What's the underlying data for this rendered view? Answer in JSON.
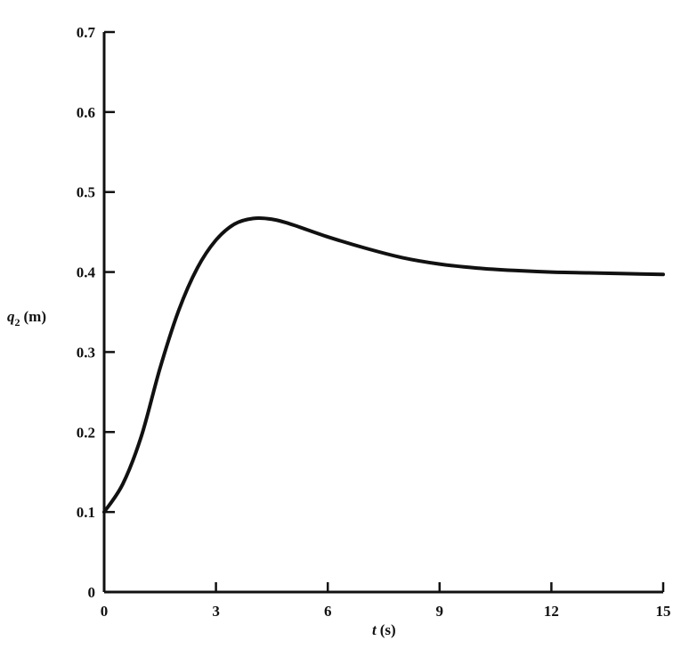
{
  "chart_data": {
    "type": "line",
    "title": "",
    "xlabel": "t (s)",
    "xlabel_var": "t",
    "xlabel_unit": "(s)",
    "ylabel": "q2 (m)",
    "ylabel_var": "q",
    "ylabel_sub": "2",
    "ylabel_unit": "(m)",
    "xlim": [
      0,
      15
    ],
    "ylim": [
      0,
      0.7
    ],
    "xticks": [
      0,
      3,
      6,
      9,
      12,
      15
    ],
    "xtick_labels": [
      "0",
      "3",
      "6",
      "9",
      "12",
      "15"
    ],
    "yticks": [
      0,
      0.1,
      0.2,
      0.3,
      0.4,
      0.5,
      0.6,
      0.7
    ],
    "ytick_labels": [
      "0",
      "0.1",
      "0.2",
      "0.3",
      "0.4",
      "0.5",
      "0.6",
      "0.7"
    ],
    "grid": false,
    "line_color": "#111111",
    "series": [
      {
        "x": [
          0,
          0.5,
          1,
          1.5,
          2,
          2.5,
          3,
          3.5,
          4,
          4.5,
          5,
          6,
          7,
          8,
          9,
          10,
          11,
          12,
          13,
          14,
          15
        ],
        "y": [
          0.1,
          0.135,
          0.195,
          0.28,
          0.352,
          0.405,
          0.44,
          0.46,
          0.467,
          0.466,
          0.46,
          0.444,
          0.43,
          0.418,
          0.41,
          0.405,
          0.402,
          0.4,
          0.399,
          0.398,
          0.397
        ]
      }
    ]
  }
}
